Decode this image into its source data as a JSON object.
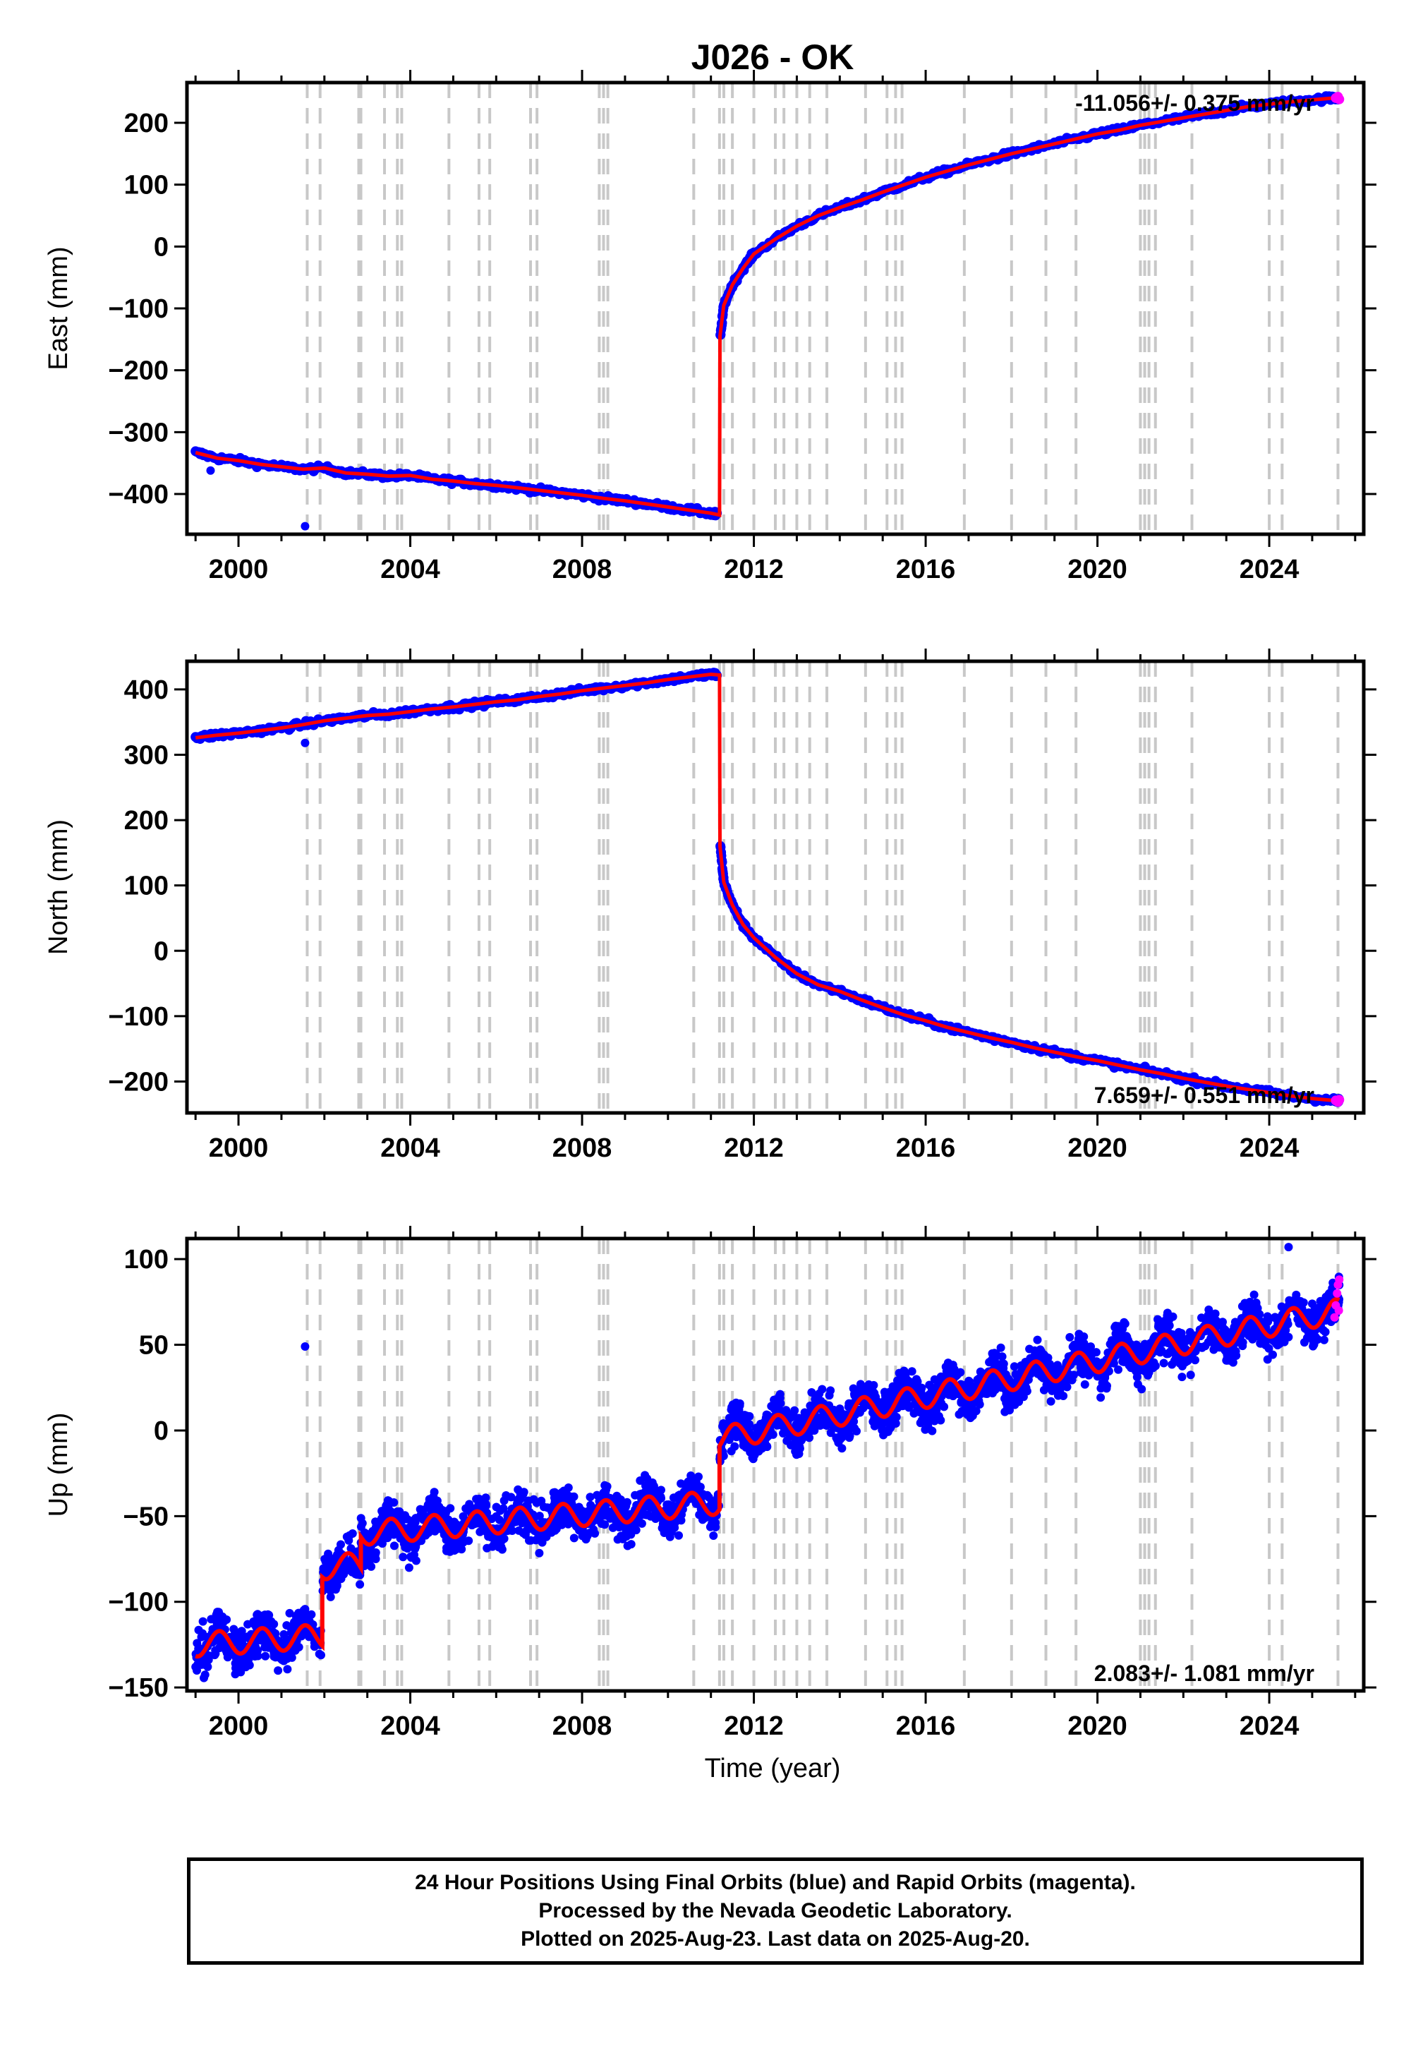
{
  "chart_data": [
    {
      "type": "scatter",
      "title": "J026 - OK",
      "ylabel": "East (mm)",
      "xlabel": "",
      "xlim": [
        1998.8,
        2026.2
      ],
      "ylim": [
        -465,
        265
      ],
      "xticks": [
        2000,
        2004,
        2008,
        2012,
        2016,
        2020,
        2024
      ],
      "yticks": [
        -400,
        -300,
        -200,
        -100,
        0,
        100,
        200
      ],
      "rate_label": "-11.056+/- 0.375 mm/yr",
      "rate_label_position": "top-right",
      "equipment_change_dates": [
        2001.6,
        2001.9,
        2002.8,
        2002.85,
        2003.4,
        2003.7,
        2003.8,
        2004.9,
        2005.6,
        2005.85,
        2006.8,
        2006.95,
        2008.4,
        2008.5,
        2008.6,
        2010.6,
        2011.2,
        2011.3,
        2011.5,
        2012.0,
        2012.5,
        2012.7,
        2013.0,
        2013.3,
        2013.7,
        2014.6,
        2015.1,
        2015.3,
        2015.45,
        2016.9,
        2018.0,
        2018.8,
        2019.5,
        2021.0,
        2021.1,
        2021.2,
        2021.35,
        2022.2,
        2024.0,
        2024.3,
        2025.6
      ],
      "series": [
        {
          "color": "#0000ff",
          "style": "points",
          "x": [
            1999.0,
            1999.5,
            2000.0,
            2000.5,
            2001.0,
            2001.5,
            2002.0,
            2002.5,
            2003.0,
            2003.5,
            2004.0,
            2004.5,
            2005.0,
            2005.5,
            2006.0,
            2006.5,
            2007.0,
            2007.5,
            2008.0,
            2008.5,
            2009.0,
            2009.5,
            2010.0,
            2010.5,
            2011.0,
            2011.15,
            2011.22,
            2011.3,
            2011.5,
            2011.75,
            2012.0,
            2012.5,
            2013.0,
            2013.5,
            2014.0,
            2014.5,
            2015.0,
            2015.5,
            2016.0,
            2016.5,
            2017.0,
            2017.5,
            2018.0,
            2018.5,
            2019.0,
            2019.5,
            2020.0,
            2020.5,
            2021.0,
            2021.5,
            2022.0,
            2022.5,
            2023.0,
            2023.5,
            2024.0,
            2024.5,
            2025.0,
            2025.5,
            2025.63
          ],
          "y": [
            -333,
            -342,
            -346,
            -352,
            -356,
            -360,
            -358,
            -366,
            -368,
            -371,
            -370,
            -376,
            -379,
            -383,
            -386,
            -390,
            -394,
            -398,
            -402,
            -407,
            -411,
            -416,
            -421,
            -426,
            -431,
            -434,
            -145,
            -95,
            -62,
            -35,
            -12,
            12,
            33,
            50,
            63,
            75,
            88,
            100,
            112,
            122,
            132,
            141,
            150,
            158,
            166,
            174,
            182,
            188,
            196,
            202,
            208,
            214,
            220,
            226,
            230,
            234,
            237,
            240,
            241
          ]
        },
        {
          "color": "#ff0000",
          "style": "line",
          "x": [
            1999.0,
            1999.5,
            2000.0,
            2000.5,
            2001.0,
            2001.5,
            2002.0,
            2002.5,
            2003.0,
            2003.5,
            2004.0,
            2004.5,
            2005.0,
            2005.5,
            2006.0,
            2006.5,
            2007.0,
            2007.5,
            2008.0,
            2008.5,
            2009.0,
            2009.5,
            2010.0,
            2010.5,
            2011.0,
            2011.2,
            2011.21,
            2011.3,
            2011.5,
            2011.75,
            2012.0,
            2012.5,
            2013.0,
            2013.5,
            2014.0,
            2014.5,
            2015.0,
            2015.5,
            2016.0,
            2016.5,
            2017.0,
            2017.5,
            2018.0,
            2018.5,
            2019.0,
            2019.5,
            2020.0,
            2020.5,
            2021.0,
            2021.5,
            2022.0,
            2022.5,
            2023.0,
            2023.5,
            2024.0,
            2024.5,
            2025.0,
            2025.5,
            2025.63
          ],
          "y": [
            -333,
            -342,
            -346,
            -352,
            -356,
            -360,
            -358,
            -366,
            -368,
            -371,
            -370,
            -376,
            -379,
            -383,
            -386,
            -390,
            -394,
            -398,
            -402,
            -407,
            -411,
            -416,
            -421,
            -426,
            -431,
            -434,
            -145,
            -95,
            -62,
            -35,
            -12,
            12,
            33,
            50,
            63,
            75,
            88,
            100,
            112,
            122,
            132,
            141,
            150,
            158,
            166,
            174,
            182,
            188,
            196,
            202,
            208,
            214,
            220,
            226,
            230,
            234,
            237,
            240,
            241
          ]
        },
        {
          "color": "#ff00ff",
          "style": "points",
          "x": [
            2025.55,
            2025.6,
            2025.63
          ],
          "y": [
            240,
            242,
            238
          ]
        }
      ],
      "outliers": [
        {
          "x": 2001.55,
          "y": -452
        },
        {
          "x": 1999.35,
          "y": -362
        }
      ]
    },
    {
      "type": "scatter",
      "ylabel": "North (mm)",
      "xlabel": "",
      "xlim": [
        1998.8,
        2026.2
      ],
      "ylim": [
        -248,
        443
      ],
      "xticks": [
        2000,
        2004,
        2008,
        2012,
        2016,
        2020,
        2024
      ],
      "yticks": [
        -200,
        -100,
        0,
        100,
        200,
        300,
        400
      ],
      "rate_label": "7.659+/- 0.551 mm/yr",
      "rate_label_position": "bottom-right",
      "series": [
        {
          "color": "#0000ff",
          "style": "points",
          "x": [
            1999.0,
            1999.5,
            2000.0,
            2000.5,
            2001.0,
            2001.5,
            2002.0,
            2002.5,
            2003.0,
            2003.5,
            2004.0,
            2004.5,
            2005.0,
            2005.5,
            2006.0,
            2006.5,
            2007.0,
            2007.5,
            2008.0,
            2008.5,
            2009.0,
            2009.5,
            2010.0,
            2010.5,
            2011.0,
            2011.15,
            2011.22,
            2011.3,
            2011.5,
            2011.75,
            2012.0,
            2012.5,
            2013.0,
            2013.5,
            2014.0,
            2014.5,
            2015.0,
            2015.5,
            2016.0,
            2016.5,
            2017.0,
            2017.5,
            2018.0,
            2018.5,
            2019.0,
            2019.5,
            2020.0,
            2020.5,
            2021.0,
            2021.5,
            2022.0,
            2022.5,
            2023.0,
            2023.5,
            2024.0,
            2024.5,
            2025.0,
            2025.5,
            2025.63
          ],
          "y": [
            326,
            330,
            333,
            337,
            341,
            346,
            352,
            356,
            360,
            362,
            366,
            370,
            373,
            377,
            381,
            384,
            389,
            393,
            398,
            402,
            406,
            410,
            415,
            419,
            423,
            422,
            160,
            105,
            70,
            40,
            20,
            -10,
            -35,
            -52,
            -62,
            -75,
            -87,
            -98,
            -107,
            -117,
            -125,
            -133,
            -140,
            -148,
            -155,
            -162,
            -168,
            -175,
            -182,
            -188,
            -195,
            -201,
            -207,
            -212,
            -217,
            -222,
            -226,
            -229,
            -230
          ]
        },
        {
          "color": "#ff0000",
          "style": "line",
          "x": [
            1999.0,
            1999.5,
            2000.0,
            2000.5,
            2001.0,
            2001.5,
            2002.0,
            2002.5,
            2003.0,
            2003.5,
            2004.0,
            2004.5,
            2005.0,
            2005.5,
            2006.0,
            2006.5,
            2007.0,
            2007.5,
            2008.0,
            2008.5,
            2009.0,
            2009.5,
            2010.0,
            2010.5,
            2011.0,
            2011.2,
            2011.21,
            2011.3,
            2011.5,
            2011.75,
            2012.0,
            2012.5,
            2013.0,
            2013.5,
            2014.0,
            2014.5,
            2015.0,
            2015.5,
            2016.0,
            2016.5,
            2017.0,
            2017.5,
            2018.0,
            2018.5,
            2019.0,
            2019.5,
            2020.0,
            2020.5,
            2021.0,
            2021.5,
            2022.0,
            2022.5,
            2023.0,
            2023.5,
            2024.0,
            2024.5,
            2025.0,
            2025.5,
            2025.63
          ],
          "y": [
            326,
            330,
            333,
            337,
            341,
            346,
            352,
            356,
            360,
            362,
            366,
            370,
            373,
            377,
            381,
            384,
            389,
            393,
            398,
            402,
            406,
            410,
            415,
            419,
            423,
            422,
            160,
            105,
            70,
            40,
            20,
            -10,
            -35,
            -52,
            -62,
            -75,
            -87,
            -98,
            -107,
            -117,
            -125,
            -133,
            -140,
            -148,
            -155,
            -162,
            -168,
            -175,
            -182,
            -188,
            -195,
            -201,
            -207,
            -212,
            -217,
            -222,
            -226,
            -229,
            -230
          ]
        },
        {
          "color": "#ff00ff",
          "style": "points",
          "x": [
            2025.55,
            2025.6,
            2025.63
          ],
          "y": [
            -229,
            -231,
            -228
          ]
        }
      ],
      "outliers": [
        {
          "x": 2001.55,
          "y": 318
        }
      ]
    },
    {
      "type": "scatter",
      "ylabel": "Up (mm)",
      "xlabel": "Time (year)",
      "xlim": [
        1998.8,
        2026.2
      ],
      "ylim": [
        -152,
        112
      ],
      "xticks": [
        2000,
        2004,
        2008,
        2012,
        2016,
        2020,
        2024
      ],
      "yticks": [
        -150,
        -100,
        -50,
        0,
        50,
        100
      ],
      "rate_label": "2.083+/- 1.081 mm/yr",
      "rate_label_position": "bottom-right",
      "seasonal_amplitude_mm": 7,
      "scatter_spread_mm": 9,
      "segments": [
        {
          "x0": 1999.0,
          "x1": 2001.95,
          "y0": -125,
          "y1": -120
        },
        {
          "x0": 2001.95,
          "x1": 2002.85,
          "y0": -80,
          "y1": -78
        },
        {
          "x0": 2002.85,
          "x1": 2011.2,
          "y0": -60,
          "y1": -42
        },
        {
          "x0": 2011.2,
          "x1": 2025.63,
          "y0": -5,
          "y1": 70
        }
      ],
      "magenta_points": {
        "x": [
          2025.52,
          2025.55,
          2025.58,
          2025.6,
          2025.62,
          2025.63
        ],
        "y": [
          66,
          73,
          80,
          85,
          70,
          88
        ]
      },
      "outliers": [
        {
          "x": 2001.55,
          "y": 49
        },
        {
          "x": 2024.45,
          "y": 107
        }
      ]
    }
  ],
  "caption": {
    "line1": "24 Hour Positions Using Final Orbits (blue) and Rapid Orbits (magenta).",
    "line2": "Processed by the Nevada Geodetic Laboratory.",
    "line3": "Plotted on 2025-Aug-23. Last data on 2025-Aug-20."
  }
}
